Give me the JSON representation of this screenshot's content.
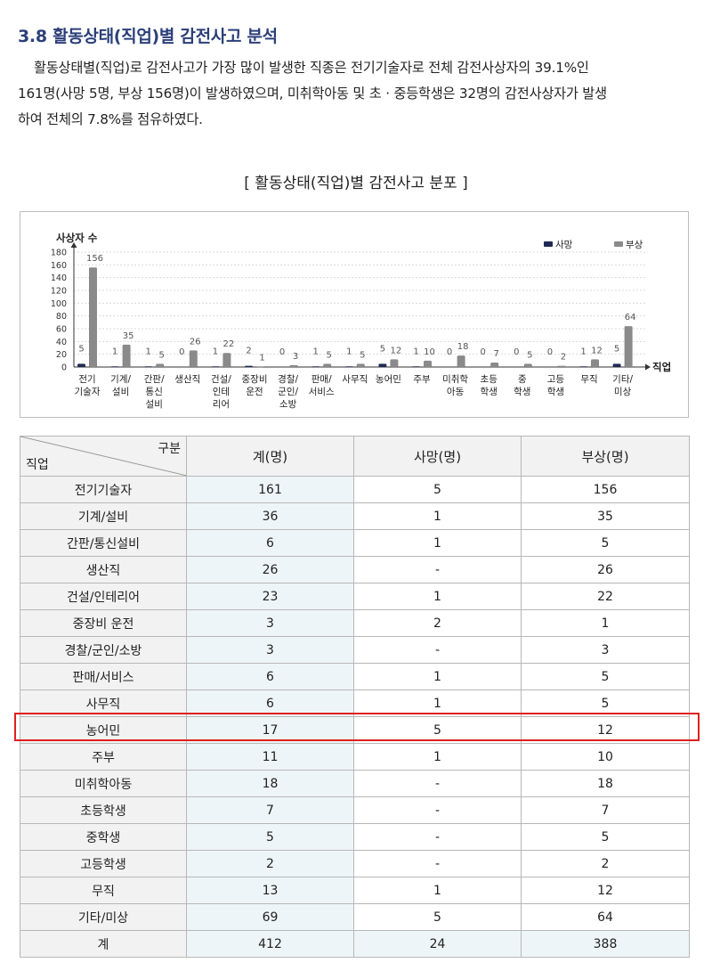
{
  "section_title": "3.8 활동상태(직업)별 감전사고 분석",
  "paragraph_lines": [
    "활동상태별(직업)로 감전사고가 가장 많이 발생한 직종은 전기기술자로 전체 감전사상자의 39.1%인",
    "161명(사망 5명, 부상 156명)이 발생하였으며, 미취학아동 및 초 · 중등학생은 32명의 감전사상자가 발생",
    "하여 전체의 7.8%를 점유하였다."
  ],
  "chart_heading": "[ 활동상태(직업)별 감전사고 분포 ]",
  "colors": {
    "death": "#1f2a55",
    "injury": "#8a8a8a",
    "heading": "#2b3f78",
    "highlight": "#e02020"
  },
  "chart_data": {
    "type": "bar",
    "ylabel": "사상자 수",
    "xlabel": "직업",
    "ylim": [
      0,
      180
    ],
    "yticks": [
      0,
      20,
      40,
      60,
      80,
      100,
      120,
      140,
      160,
      180
    ],
    "grid": true,
    "legend_position": "top-right",
    "categories": [
      [
        "전기",
        "기술자"
      ],
      [
        "기계/",
        "설비"
      ],
      [
        "간판/",
        "통신",
        "설비"
      ],
      [
        "생산직"
      ],
      [
        "건설/",
        "인테",
        "리어"
      ],
      [
        "중장비",
        "운전"
      ],
      [
        "경찰/",
        "군인/",
        "소방"
      ],
      [
        "판매/",
        "서비스"
      ],
      [
        "사무직"
      ],
      [
        "농어민"
      ],
      [
        "주부"
      ],
      [
        "미취학",
        "아동"
      ],
      [
        "초등",
        "학생"
      ],
      [
        "중",
        "학생"
      ],
      [
        "고등",
        "학생"
      ],
      [
        "무직"
      ],
      [
        "기타/",
        "미상"
      ]
    ],
    "series": [
      {
        "name": "사망",
        "values": [
          5,
          1,
          1,
          0,
          1,
          2,
          0,
          1,
          1,
          5,
          1,
          0,
          0,
          0,
          0,
          1,
          5
        ]
      },
      {
        "name": "부상",
        "values": [
          156,
          35,
          5,
          26,
          22,
          1,
          3,
          5,
          5,
          12,
          10,
          18,
          7,
          5,
          2,
          12,
          64
        ]
      }
    ]
  },
  "table": {
    "corner_top": "구분",
    "corner_bottom": "직업",
    "columns": [
      "계(명)",
      "사망(명)",
      "부상(명)"
    ],
    "rows": [
      {
        "label": "전기기술자",
        "total": "161",
        "death": "5",
        "injury": "156"
      },
      {
        "label": "기계/설비",
        "total": "36",
        "death": "1",
        "injury": "35"
      },
      {
        "label": "간판/통신설비",
        "total": "6",
        "death": "1",
        "injury": "5"
      },
      {
        "label": "생산직",
        "total": "26",
        "death": "-",
        "injury": "26"
      },
      {
        "label": "건설/인테리어",
        "total": "23",
        "death": "1",
        "injury": "22"
      },
      {
        "label": "중장비 운전",
        "total": "3",
        "death": "2",
        "injury": "1"
      },
      {
        "label": "경찰/군인/소방",
        "total": "3",
        "death": "-",
        "injury": "3"
      },
      {
        "label": "판매/서비스",
        "total": "6",
        "death": "1",
        "injury": "5"
      },
      {
        "label": "사무직",
        "total": "6",
        "death": "1",
        "injury": "5"
      },
      {
        "label": "농어민",
        "total": "17",
        "death": "5",
        "injury": "12",
        "highlighted": true
      },
      {
        "label": "주부",
        "total": "11",
        "death": "1",
        "injury": "10"
      },
      {
        "label": "미취학아동",
        "total": "18",
        "death": "-",
        "injury": "18"
      },
      {
        "label": "초등학생",
        "total": "7",
        "death": "-",
        "injury": "7"
      },
      {
        "label": "중학생",
        "total": "5",
        "death": "-",
        "injury": "5"
      },
      {
        "label": "고등학생",
        "total": "2",
        "death": "-",
        "injury": "2"
      },
      {
        "label": "무직",
        "total": "13",
        "death": "1",
        "injury": "12"
      },
      {
        "label": "기타/미상",
        "total": "69",
        "death": "5",
        "injury": "64"
      }
    ],
    "total_row": {
      "label": "계",
      "total": "412",
      "death": "24",
      "injury": "388"
    }
  }
}
